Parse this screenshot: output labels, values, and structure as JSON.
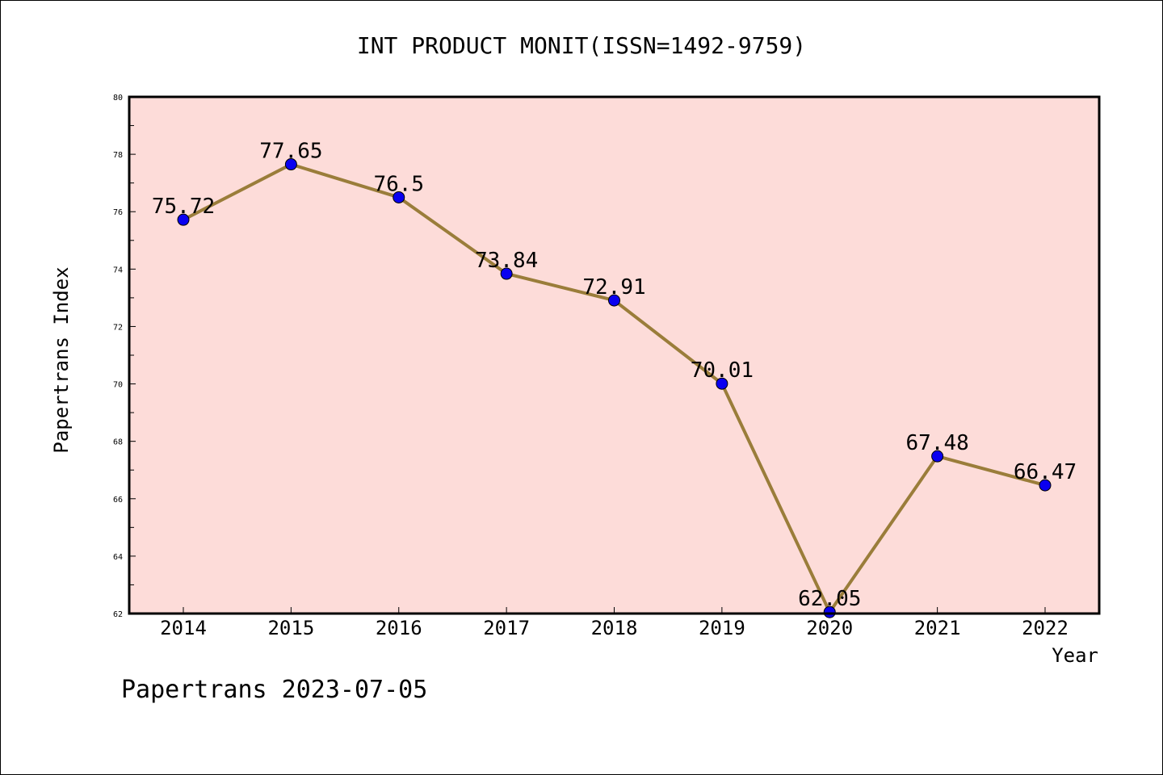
{
  "chart_data": {
    "type": "line",
    "title": "INT PRODUCT MONIT(ISSN=1492-9759)",
    "xlabel": "Year",
    "ylabel": "Papertrans Index",
    "footer": "Papertrans 2023-07-05",
    "categories": [
      "2014",
      "2015",
      "2016",
      "2017",
      "2018",
      "2019",
      "2020",
      "2021",
      "2022"
    ],
    "series": [
      {
        "values": [
          75.72,
          77.65,
          76.5,
          73.84,
          72.91,
          70.01,
          62.05,
          67.48,
          66.47
        ],
        "labels": [
          "75.72",
          "77.65",
          "76.5",
          "73.84",
          "72.91",
          "70.01",
          "62.05",
          "67.48",
          "66.47"
        ]
      }
    ],
    "ylim": [
      62,
      80
    ],
    "yticks": [
      "62",
      "64",
      "66",
      "68",
      "70",
      "72",
      "74",
      "76",
      "78",
      "80"
    ],
    "grid": false,
    "colors": {
      "plot_background": "#fddcd9",
      "line": "#9a7d3a",
      "marker": "#0a00f0",
      "marker_edge": "#000000",
      "axes": "#000000"
    }
  }
}
